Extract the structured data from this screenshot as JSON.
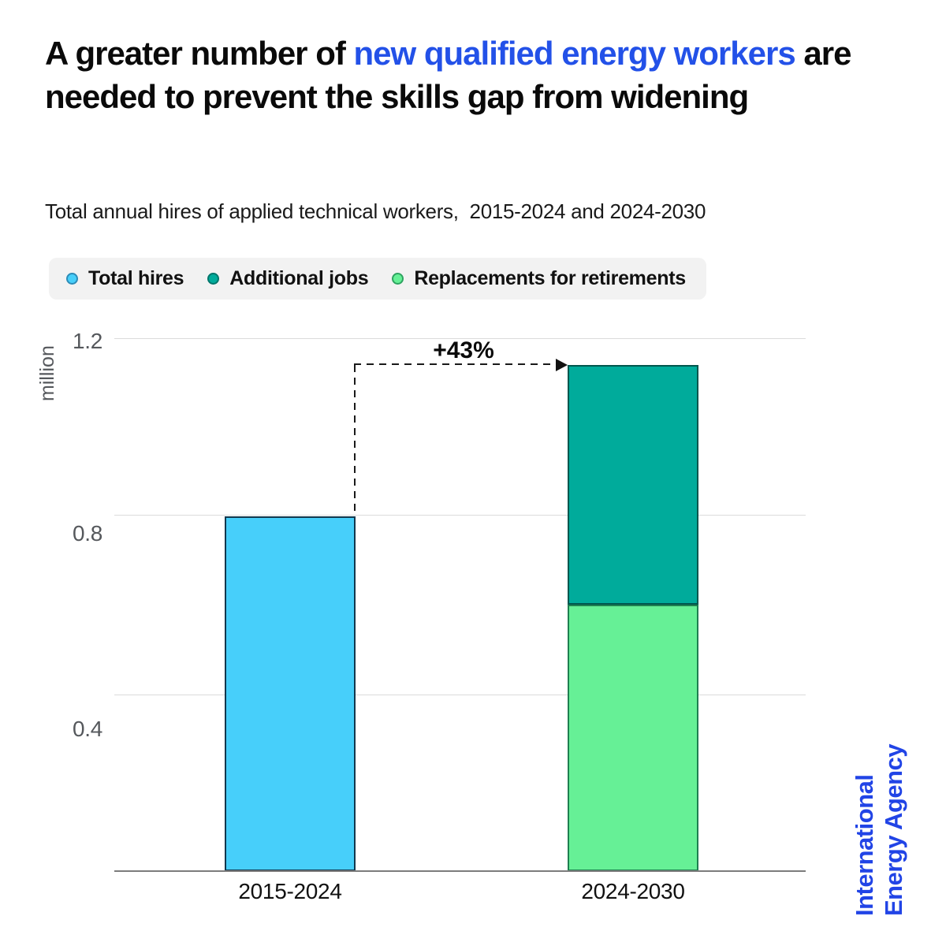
{
  "header": {
    "title_pre": "A greater number of ",
    "title_highlight": "new qualified energy workers",
    "title_post": " are needed to prevent the skills gap from widening",
    "subtitle": "Total annual hires of applied technical workers,  2015-2024 and 2024-2030"
  },
  "legend": {
    "items": [
      {
        "label": "Total hires",
        "color": "#47CFFA",
        "ring": "#2D8CB8"
      },
      {
        "label": "Additional jobs",
        "color": "#00AB9B",
        "ring": "#00766B"
      },
      {
        "label": "Replacements for retirements",
        "color": "#66F096",
        "ring": "#2EA360"
      }
    ]
  },
  "chart_data": {
    "type": "bar",
    "stacked": true,
    "title": "Total annual hires of applied technical workers, 2015-2024 and 2024-2030",
    "xlabel": "",
    "ylabel": "million",
    "ylim": [
      0,
      1.2
    ],
    "yticks": [
      1.2,
      0.8,
      0.4
    ],
    "ytick_labels": [
      "1.2",
      "0.8",
      "0.4"
    ],
    "grid": "horizontal",
    "legend_position": "top",
    "categories": [
      "2015-2024",
      "2024-2030"
    ],
    "series": [
      {
        "name": "Total hires",
        "color": "#47CFFA",
        "stroke": "#12384E",
        "values": [
          0.8,
          0
        ]
      },
      {
        "name": "Additional jobs",
        "color": "#00AB9B",
        "stroke": "#00564E",
        "values": [
          0,
          0.54
        ]
      },
      {
        "name": "Replacements for retirements",
        "color": "#66F096",
        "stroke": "#1F7F50",
        "values": [
          0,
          0.6
        ]
      }
    ],
    "stack_order": [
      2,
      1,
      0
    ],
    "totals": [
      0.8,
      1.14
    ],
    "annotation": {
      "label": "+43%",
      "from_category": "2015-2024",
      "to_category": "2024-2030"
    }
  },
  "branding": {
    "line1": "International",
    "line2": "Energy Agency",
    "color": "#2144E6"
  }
}
